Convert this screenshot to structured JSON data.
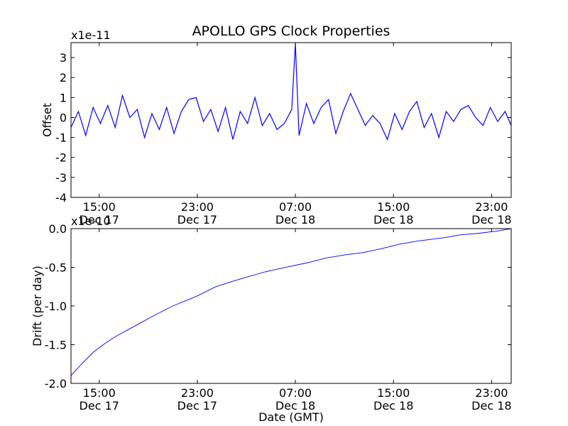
{
  "title": "APOLLO GPS Clock Properties",
  "chart_data": [
    {
      "type": "line",
      "panel": "top",
      "title": "APOLLO GPS Clock Properties",
      "xlabel": "",
      "ylabel": "Offset",
      "scale_note": "x1e-11",
      "ylim": [
        -4,
        3.75
      ],
      "yticks": [
        -4,
        -3,
        -2,
        -1,
        0,
        1,
        2,
        3
      ],
      "ytick_labels": [
        "-4",
        "-3",
        "-2",
        "-1",
        "0",
        "1",
        "2",
        "3"
      ],
      "xlim_hours": [
        12.7,
        48.6
      ],
      "xticks_hours": [
        15,
        23,
        31,
        39,
        47
      ],
      "xtick_labels": [
        [
          "15:00",
          "Dec 17"
        ],
        [
          "23:00",
          "Dec 17"
        ],
        [
          "07:00",
          "Dec 18"
        ],
        [
          "15:00",
          "Dec 18"
        ],
        [
          "23:00",
          "Dec 18"
        ]
      ],
      "line_color": "#0000ff",
      "series": [
        {
          "x_hours": [
            12.7,
            13.3,
            13.9,
            14.5,
            15.1,
            15.7,
            16.3,
            16.9,
            17.5,
            18.1,
            18.7,
            19.3,
            19.9,
            20.5,
            21.1,
            21.7,
            22.3,
            22.9,
            23.5,
            24.1,
            24.7,
            25.3,
            25.9,
            26.5,
            27.1,
            27.7,
            28.3,
            28.9,
            29.5,
            30.1,
            30.7,
            31.0,
            31.3,
            31.9,
            32.5,
            33.1,
            33.7,
            34.3,
            34.9,
            35.5,
            36.1,
            36.7,
            37.3,
            37.9,
            38.5,
            39.1,
            39.7,
            40.3,
            40.9,
            41.5,
            42.1,
            42.7,
            43.3,
            43.9,
            44.5,
            45.1,
            45.7,
            46.3,
            46.9,
            47.5,
            48.1,
            48.6
          ],
          "y": [
            -0.5,
            0.3,
            -0.9,
            0.5,
            -0.3,
            0.6,
            -0.5,
            1.1,
            0.0,
            0.4,
            -1.0,
            0.2,
            -0.6,
            0.5,
            -0.8,
            0.3,
            0.9,
            1.0,
            -0.2,
            0.4,
            -0.7,
            0.5,
            -1.1,
            0.3,
            -0.3,
            1.0,
            -0.4,
            0.2,
            -0.6,
            -0.3,
            0.4,
            3.7,
            -0.9,
            0.7,
            -0.3,
            0.5,
            0.9,
            -0.8,
            0.3,
            1.2,
            0.4,
            -0.4,
            0.1,
            -0.3,
            -1.1,
            0.2,
            -0.6,
            0.3,
            0.8,
            -0.5,
            0.2,
            -1.0,
            0.3,
            -0.2,
            0.4,
            0.6,
            0.0,
            -0.4,
            0.5,
            -0.2,
            0.3,
            -0.4
          ]
        }
      ]
    },
    {
      "type": "line",
      "panel": "bottom",
      "xlabel": "Date (GMT)",
      "ylabel": "Drift (per day)",
      "scale_note": "x1e-10",
      "ylim": [
        -2.0,
        0.0
      ],
      "yticks": [
        -2.0,
        -1.5,
        -1.0,
        -0.5,
        0.0
      ],
      "ytick_labels": [
        "-2.0",
        "-1.5",
        "-1.0",
        "-0.5",
        "0.0"
      ],
      "xlim_hours": [
        12.7,
        48.6
      ],
      "xticks_hours": [
        15,
        23,
        31,
        39,
        47
      ],
      "xtick_labels": [
        [
          "15:00",
          "Dec 17"
        ],
        [
          "23:00",
          "Dec 17"
        ],
        [
          "07:00",
          "Dec 18"
        ],
        [
          "15:00",
          "Dec 18"
        ],
        [
          "23:00",
          "Dec 18"
        ]
      ],
      "line_color": "#0000ff",
      "series": [
        {
          "x_hours": [
            12.7,
            13.5,
            14.5,
            15.5,
            16.5,
            18.0,
            19.5,
            21.0,
            23.0,
            24.5,
            26.5,
            28.5,
            30.5,
            32.0,
            33.5,
            35.0,
            36.5,
            38.0,
            39.5,
            41.0,
            43.0,
            44.5,
            46.0,
            47.5,
            48.6
          ],
          "y": [
            -1.9,
            -1.76,
            -1.6,
            -1.48,
            -1.38,
            -1.25,
            -1.12,
            -1.0,
            -0.87,
            -0.75,
            -0.65,
            -0.56,
            -0.49,
            -0.44,
            -0.38,
            -0.34,
            -0.31,
            -0.26,
            -0.2,
            -0.16,
            -0.12,
            -0.08,
            -0.06,
            -0.03,
            0.0
          ]
        }
      ]
    }
  ]
}
